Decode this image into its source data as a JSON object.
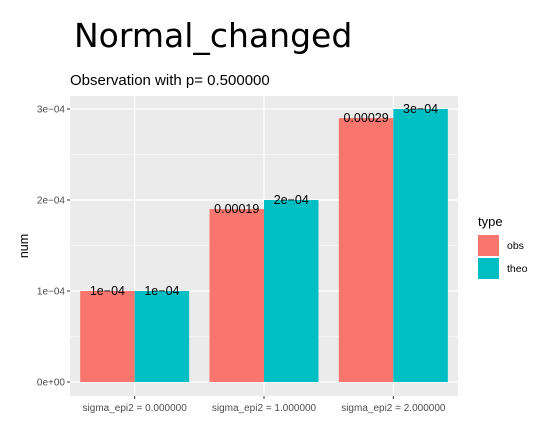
{
  "page_title": "Normal_changed",
  "chart_data": {
    "type": "bar",
    "title": "Observation with p= 0.500000",
    "xlabel": "",
    "ylabel": "num",
    "ylim": [
      0,
      0.0003
    ],
    "yticks": [
      0,
      0.0001,
      0.0002,
      0.0003
    ],
    "ytick_labels": [
      "0e+00",
      "1e−04",
      "2e−04",
      "3e−04"
    ],
    "categories": [
      "sigma_epi2 = 0.000000",
      "sigma_epi2 = 1.000000",
      "sigma_epi2 = 2.000000"
    ],
    "series": [
      {
        "name": "obs",
        "color": "#F8766D",
        "values": [
          0.0001,
          0.00019,
          0.00029
        ],
        "labels": [
          "1e−04",
          "0.00019",
          "0.00029"
        ]
      },
      {
        "name": "theo",
        "color": "#00BFC4",
        "values": [
          0.0001,
          0.0002,
          0.0003
        ],
        "labels": [
          "1e−04",
          "2e−04",
          "3e−04"
        ]
      }
    ],
    "legend": {
      "title": "type",
      "position": "right"
    },
    "grid": true,
    "panel_background": "#EBEBEB",
    "grid_color": "#FFFFFF"
  }
}
